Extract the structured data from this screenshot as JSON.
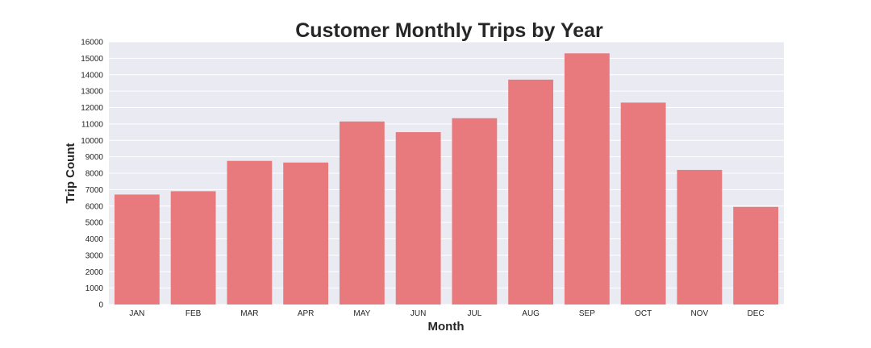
{
  "chart_data": {
    "type": "bar",
    "title": "Customer Monthly Trips by Year",
    "xlabel": "Month",
    "ylabel": "Trip Count",
    "categories": [
      "JAN",
      "FEB",
      "MAR",
      "APR",
      "MAY",
      "JUN",
      "JUL",
      "AUG",
      "SEP",
      "OCT",
      "NOV",
      "DEC"
    ],
    "values": [
      6700,
      6900,
      8750,
      8650,
      11150,
      10500,
      11350,
      13700,
      15300,
      12300,
      8200,
      5950
    ],
    "ylim": [
      0,
      16000
    ],
    "yticks": [
      0,
      1000,
      2000,
      3000,
      4000,
      5000,
      6000,
      7000,
      8000,
      9000,
      10000,
      11000,
      12000,
      13000,
      14000,
      15000,
      16000
    ],
    "grid": true,
    "bar_color": "#e8797c",
    "background_color": "#eaeaf2"
  }
}
